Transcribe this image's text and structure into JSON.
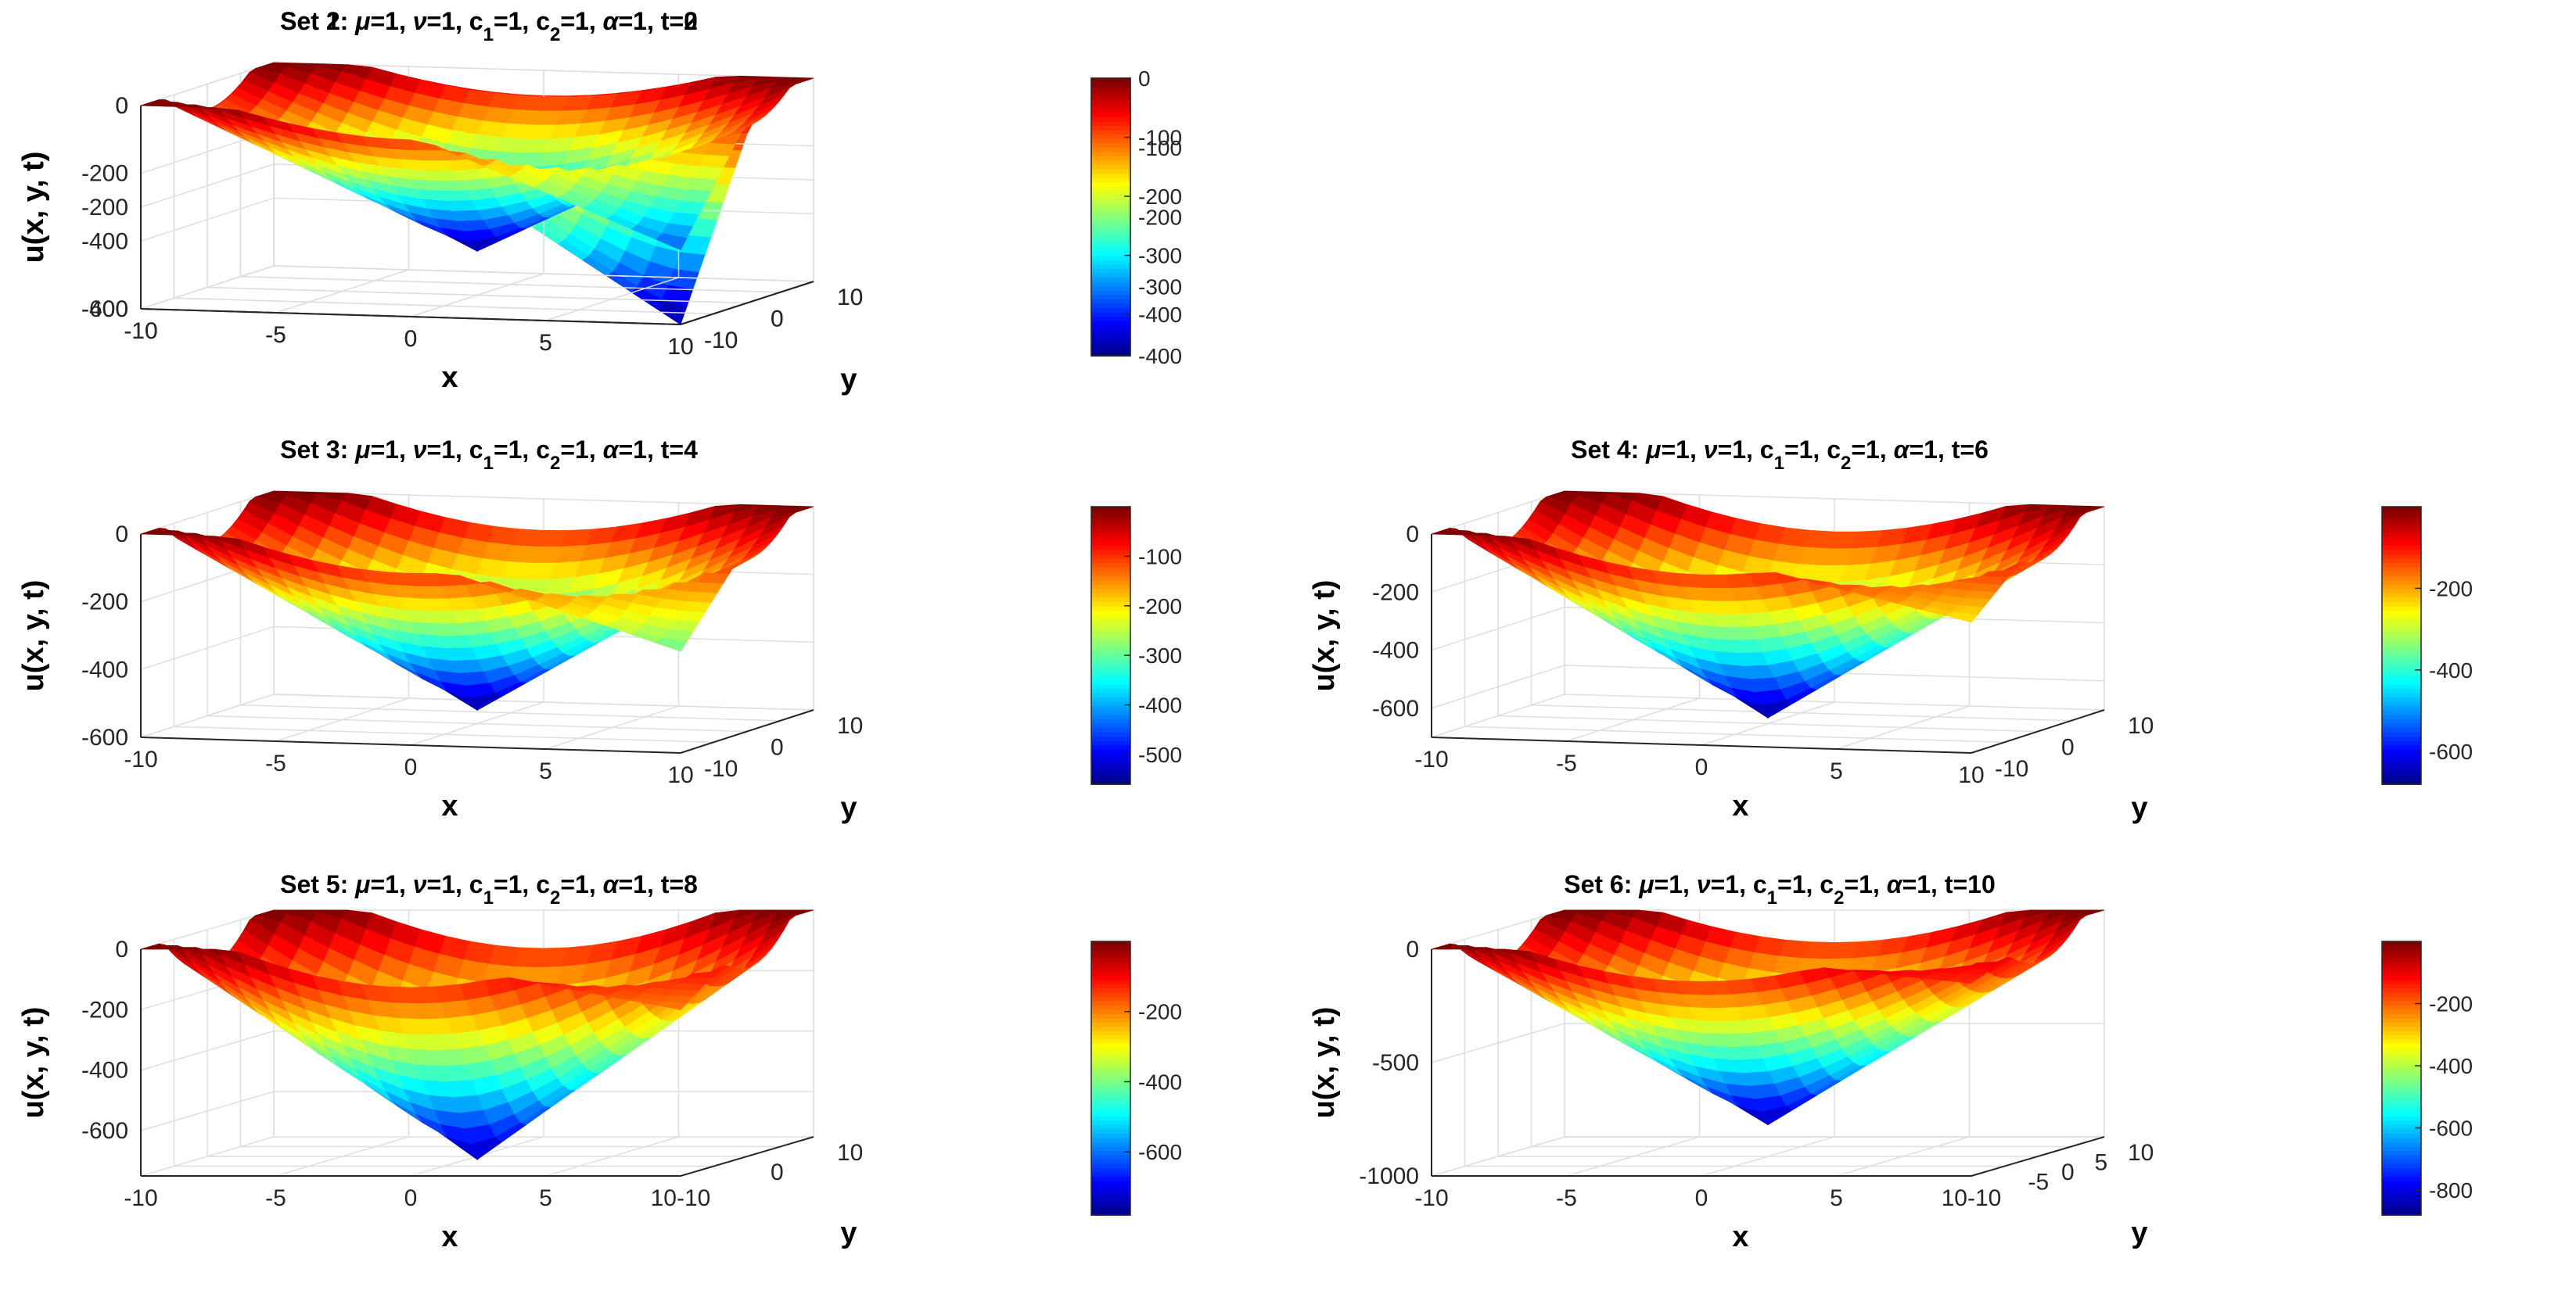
{
  "chart_data": [
    {
      "type": "surface",
      "title": "Set 1: μ=1, ν=1, c1=1, c2=1, α=1, t=0",
      "title_parts": {
        "set": "Set 1: ",
        "mu": "=1, ",
        "nu": "=1, c",
        "c1": "=1, c",
        "c2": "=1, ",
        "alpha": "=1, t=0"
      },
      "xlabel": "x",
      "ylabel": "y",
      "zlabel": "u(x, y, t)",
      "xticks": [
        "-10",
        "-5",
        "0",
        "5",
        "10"
      ],
      "yticks": [
        "-10",
        "0",
        "10"
      ],
      "zticks": [
        "0",
        "-200",
        "-400"
      ],
      "zlim": [
        -400,
        0
      ],
      "colorbar_ticks": [
        "0",
        "-100",
        "-200",
        "-300",
        "-400"
      ],
      "colorbar_range": [
        -400,
        0
      ],
      "min_near": {
        "x": 10,
        "y": -10,
        "z": -400
      },
      "secondary_min": {
        "x": 0,
        "y": 0,
        "z": -300
      },
      "colormap": "jet"
    },
    {
      "type": "surface",
      "title": "Set 2: μ=1, ν=1, c1=1, c2=1, α=1, t=2",
      "title_parts": {
        "set": "Set 2: ",
        "mu": "=1, ",
        "nu": "=1, c",
        "c1": "=1, c",
        "c2": "=1, ",
        "alpha": "=1, t=2"
      },
      "xlabel": "x",
      "ylabel": "y",
      "zlabel": "u(x, y, t)",
      "xticks": [
        "-10",
        "-5",
        "0",
        "5",
        "10"
      ],
      "yticks": [
        "-10",
        "0",
        "10"
      ],
      "zticks": [
        "0",
        "-200",
        "-400",
        "-600"
      ],
      "zlim": [
        -600,
        0
      ],
      "colorbar_ticks": [
        "-100",
        "-200",
        "-300",
        "-400"
      ],
      "colorbar_range": [
        -470,
        0
      ],
      "min_near": {
        "x": 0,
        "y": 0,
        "z": -470
      },
      "secondary_min": {
        "x": 10,
        "y": -10,
        "z": -380
      },
      "colormap": "jet"
    },
    {
      "type": "surface",
      "title": "Set 3: μ=1, ν=1, c1=1, c2=1, α=1, t=4",
      "title_parts": {
        "set": "Set 3: ",
        "mu": "=1, ",
        "nu": "=1, c",
        "c1": "=1, c",
        "c2": "=1, ",
        "alpha": "=1, t=4"
      },
      "xlabel": "x",
      "ylabel": "y",
      "zlabel": "u(x, y, t)",
      "xticks": [
        "-10",
        "-5",
        "0",
        "5",
        "10"
      ],
      "yticks": [
        "-10",
        "0",
        "10"
      ],
      "zticks": [
        "0",
        "-200",
        "-400",
        "-600"
      ],
      "zlim": [
        -600,
        0
      ],
      "colorbar_ticks": [
        "-100",
        "-200",
        "-300",
        "-400",
        "-500"
      ],
      "colorbar_range": [
        -560,
        0
      ],
      "min_near": {
        "x": 0,
        "y": 0,
        "z": -560
      },
      "secondary_min": {
        "x": 10,
        "y": -10,
        "z": -300
      },
      "colormap": "jet"
    },
    {
      "type": "surface",
      "title": "Set 4: μ=1, ν=1, c1=1, c2=1, α=1, t=6",
      "title_parts": {
        "set": "Set 4: ",
        "mu": "=1, ",
        "nu": "=1, c",
        "c1": "=1, c",
        "c2": "=1, ",
        "alpha": "=1, t=6"
      },
      "xlabel": "x",
      "ylabel": "y",
      "zlabel": "u(x, y, t)",
      "xticks": [
        "-10",
        "-5",
        "0",
        "5",
        "10"
      ],
      "yticks": [
        "-10",
        "0",
        "10"
      ],
      "zticks": [
        "0",
        "-200",
        "-400",
        "-600"
      ],
      "zlim": [
        -700,
        0
      ],
      "colorbar_ticks": [
        "-200",
        "-400",
        "-600"
      ],
      "colorbar_range": [
        -680,
        0
      ],
      "min_near": {
        "x": 0,
        "y": 0,
        "z": -680
      },
      "secondary_min": {
        "x": 10,
        "y": -10,
        "z": -250
      },
      "colormap": "jet"
    },
    {
      "type": "surface",
      "title": "Set 5: μ=1, ν=1, c1=1, c2=1, α=1, t=8",
      "title_parts": {
        "set": "Set 5: ",
        "mu": "=1, ",
        "nu": "=1, c",
        "c1": "=1, c",
        "c2": "=1, ",
        "alpha": "=1, t=8"
      },
      "xlabel": "x",
      "ylabel": "y",
      "zlabel": "u(x, y, t)",
      "xticks": [
        "-10",
        "-5",
        "0",
        "5",
        "10-10"
      ],
      "yticks": [
        "0",
        "10"
      ],
      "zticks": [
        "0",
        "-200",
        "-400",
        "-600"
      ],
      "zlim": [
        -750,
        0
      ],
      "colorbar_ticks": [
        "-200",
        "-400",
        "-600"
      ],
      "colorbar_range": [
        -780,
        0
      ],
      "min_near": {
        "x": 0,
        "y": 0,
        "z": -760
      },
      "secondary_min": {
        "x": 10,
        "y": -10,
        "z": -200
      },
      "colormap": "jet"
    },
    {
      "type": "surface",
      "title": "Set 6: μ=1, ν=1, c1=1, c2=1, α=1, t=10",
      "title_parts": {
        "set": "Set 6: ",
        "mu": "=1, ",
        "nu": "=1, c",
        "c1": "=1, c",
        "c2": "=1, ",
        "alpha": "=1, t=10"
      },
      "xlabel": "x",
      "ylabel": "y",
      "zlabel": "u(x, y, t)",
      "xticks": [
        "-10",
        "-5",
        "0",
        "5",
        "10-10"
      ],
      "yticks": [
        "-5",
        "0",
        "5",
        "10"
      ],
      "zticks": [
        "0",
        "-500",
        "-1000"
      ],
      "zlim": [
        -1000,
        0
      ],
      "colorbar_ticks": [
        "-200",
        "-400",
        "-600",
        "-800"
      ],
      "colorbar_range": [
        -880,
        0
      ],
      "min_near": {
        "x": 0,
        "y": 0,
        "z": -860
      },
      "secondary_min": {
        "x": 10,
        "y": -10,
        "z": -150
      },
      "colormap": "jet"
    }
  ]
}
